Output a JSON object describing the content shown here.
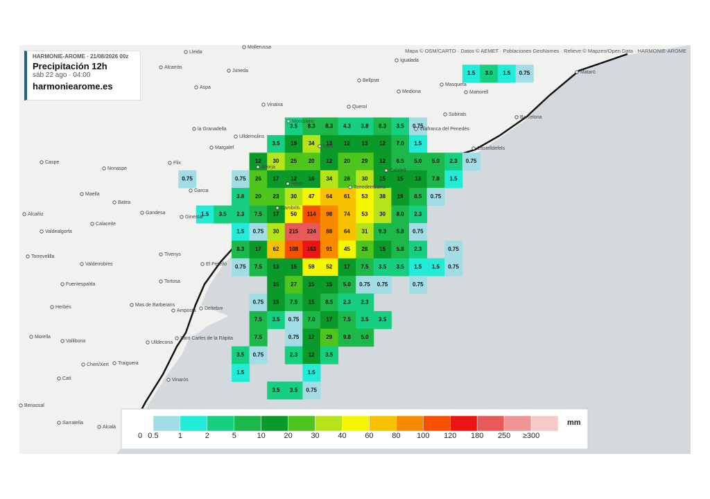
{
  "header": {
    "model": "HARMONIE-AROME · 21/08/2026 00z",
    "title": "Precipitación 12h",
    "time": "sáb 22 ago · 04:00",
    "site": "harmoniearome.es"
  },
  "attribution": "Mapa © OSM/CARTO · Datos © AEMET · Poblaciones GeoNames · Relieve © Mapzen/Open Data · HARMONIE-AROME",
  "legend": {
    "unit": "mm",
    "labels": [
      "0",
      "0.5",
      "1",
      "2",
      "5",
      "10",
      "20",
      "30",
      "40",
      "60",
      "80",
      "100",
      "120",
      "180",
      "250",
      "≥300"
    ],
    "colors": [
      "#ffffff",
      "#a2dde5",
      "#22ecd8",
      "#17cf80",
      "#1cb84a",
      "#0a9a2a",
      "#4ec51c",
      "#b6e41a",
      "#f6f600",
      "#f8c200",
      "#f98a00",
      "#f65000",
      "#ee1414",
      "#e85a5a",
      "#f09595",
      "#f7caca"
    ]
  },
  "places": [
    "Lleida",
    "Mollerussa",
    "Alcarràs",
    "Juneda",
    "Aspa",
    "Vinaixa",
    "la Granadella",
    "Ulldemolins",
    "Margalef",
    "Flix",
    "Caspe",
    "Nonaspe",
    "Maella",
    "Batea",
    "Garcia",
    "Gandesa",
    "Ginestar",
    "Alcañiz",
    "Valdealgorfa",
    "Calaceite",
    "Tivenys",
    "El Perelló",
    "Torrevelilla",
    "Valderrobres",
    "Fuentespalda",
    "Tortosa",
    "Herbés",
    "Mas de Barberans",
    "Amposta",
    "Deltebre",
    "Morella",
    "Vallibona",
    "Ulldecona",
    "Sant Carles de la Ràpita",
    "Chert/Xert",
    "Traiguera",
    "Catí",
    "Vinaròs",
    "Benassal",
    "Sarratella",
    "Alcalà",
    "Igualada",
    "Bellprat",
    "Mediona",
    "Masquefa",
    "Martorell",
    "Querol",
    "Subirats",
    "Barcelona",
    "Vilafranca del Penedès",
    "Castelldefels",
    "Montblanc",
    "Valls",
    "Alforja",
    "Calafell",
    "Reus",
    "Torredembarra",
    "Cambrils",
    "Mataró"
  ],
  "grid": {
    "rows": [
      [
        null,
        null,
        null,
        null,
        null,
        null,
        null,
        null,
        null,
        null,
        null,
        null,
        null,
        null,
        null,
        null,
        "1.5",
        "3.0",
        "1.5",
        "0.75"
      ],
      [],
      [],
      [
        null,
        null,
        null,
        null,
        null,
        null,
        "3.5",
        "8.3",
        "8.3",
        "4.3",
        "3.8",
        "8.3",
        "3.5",
        "0.75"
      ],
      [
        null,
        null,
        null,
        null,
        null,
        "3.5",
        "19",
        "34",
        "13",
        "12",
        "13",
        "12",
        "7.0",
        "1.5"
      ],
      [
        null,
        null,
        null,
        null,
        "12",
        "30",
        "25",
        "20",
        "12",
        "20",
        "29",
        "12",
        "6.5",
        "5.0",
        "5.0",
        "2.3",
        "0.75"
      ],
      [
        "0.75",
        null,
        null,
        "0.75",
        "26",
        "17",
        "12",
        "16",
        "34",
        "28",
        "30",
        "15",
        "15",
        "13",
        "7.8",
        "1.5"
      ],
      [
        null,
        null,
        null,
        "3.8",
        "20",
        "23",
        "30",
        "47",
        "64",
        "61",
        "53",
        "38",
        "19",
        "8.5",
        "0.75"
      ],
      [
        null,
        "1.5",
        "3.5",
        "2.3",
        "7.5",
        "17",
        "50",
        "114",
        "98",
        "74",
        "53",
        "30",
        "8.0",
        "2.3"
      ],
      [
        null,
        null,
        null,
        "1.5",
        "0.75",
        "30",
        "215",
        "224",
        "88",
        "64",
        "31",
        "9.3",
        "5.8",
        "0.75"
      ],
      [
        null,
        null,
        null,
        "8.3",
        "17",
        "62",
        "108",
        "163",
        "91",
        "45",
        "28",
        "15",
        "5.8",
        "2.3",
        null,
        "0.75"
      ],
      [
        null,
        null,
        null,
        "0.75",
        "7.5",
        "13",
        "15",
        "59",
        "52",
        "17",
        "7.5",
        "3.5",
        "3.5",
        "1.5",
        "1.5",
        "0.75"
      ],
      [
        null,
        null,
        null,
        null,
        null,
        "15",
        "27",
        "15",
        "15",
        "5.0",
        "0.75",
        "0.75",
        null,
        "0.75"
      ],
      [
        null,
        null,
        null,
        null,
        "0.75",
        "15",
        "7.5",
        "15",
        "8.5",
        "2.3",
        "2.3"
      ],
      [
        null,
        null,
        null,
        null,
        "7.5",
        "3.5",
        "0.75",
        "7.0",
        "17",
        "7.5",
        "3.5",
        "3.5"
      ],
      [
        null,
        null,
        null,
        null,
        "7.5",
        null,
        "0.75",
        "17",
        "29",
        "9.8",
        "5.0"
      ],
      [
        null,
        null,
        null,
        "3.5",
        "0.75",
        null,
        "2.3",
        "12",
        "3.5"
      ],
      [
        null,
        null,
        null,
        "1.5",
        null,
        null,
        null,
        "1.5"
      ],
      [
        null,
        null,
        null,
        null,
        null,
        "3.5",
        "3.5",
        "0.75"
      ]
    ]
  }
}
